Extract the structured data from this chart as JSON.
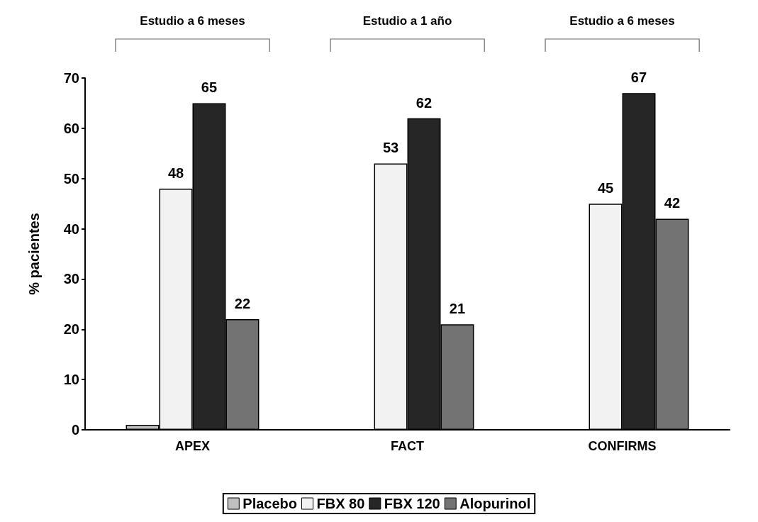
{
  "chart_data": {
    "type": "bar",
    "ylabel": "% pacientes",
    "categories": [
      "APEX",
      "FACT",
      "CONFIRMS"
    ],
    "series": [
      {
        "name": "Placebo",
        "color": "#c0c0c0",
        "values": [
          1,
          null,
          null
        ],
        "value_labels": [
          null,
          null,
          null
        ]
      },
      {
        "name": "FBX 80",
        "color": "#f2f2f2",
        "values": [
          48,
          53,
          45
        ],
        "value_labels": [
          "48",
          "53",
          "45"
        ]
      },
      {
        "name": "FBX 120",
        "color": "#262626",
        "values": [
          65,
          62,
          67
        ],
        "value_labels": [
          "65",
          "62",
          "67"
        ]
      },
      {
        "name": "Alopurinol",
        "color": "#737373",
        "values": [
          22,
          21,
          42
        ],
        "value_labels": [
          "22",
          "21",
          "42"
        ]
      }
    ],
    "ylim": [
      0,
      70
    ],
    "yticks": [
      0,
      10,
      20,
      30,
      40,
      50,
      60,
      70
    ],
    "grid": false,
    "legend": "bottom",
    "annotations": [
      "Estudio a 6 meses",
      "Estudio a 1 año",
      "Estudio a 6 meses"
    ]
  }
}
